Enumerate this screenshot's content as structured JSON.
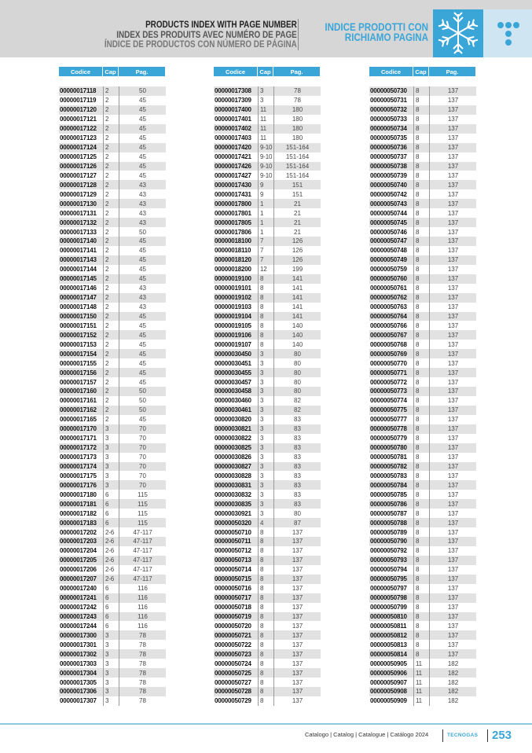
{
  "header": {
    "title_en": "PRODUCTS INDEX WITH PAGE NUMBER",
    "title_fr": "INDEX DES PRODUITS AVEC NUMÉRO DE PAGE",
    "title_es": "ÍNDICE DE PRODUCTOS CON NÚMERO DE PÁGINA",
    "title_it_line1": "INDICE PRODOTTI CON",
    "title_it_line2": "RICHIAMO PAGINA",
    "icon": "snowflake-icon",
    "accent_color": "#3aa6d8"
  },
  "columns": {
    "code": "Codice",
    "cap": "Cap",
    "pag": "Pag."
  },
  "tables": [
    [
      [
        "00000017118",
        "2",
        "50"
      ],
      [
        "00000017119",
        "2",
        "45"
      ],
      [
        "00000017120",
        "2",
        "45"
      ],
      [
        "00000017121",
        "2",
        "45"
      ],
      [
        "00000017122",
        "2",
        "45"
      ],
      [
        "00000017123",
        "2",
        "45"
      ],
      [
        "00000017124",
        "2",
        "45"
      ],
      [
        "00000017125",
        "2",
        "45"
      ],
      [
        "00000017126",
        "2",
        "45"
      ],
      [
        "00000017127",
        "2",
        "45"
      ],
      [
        "00000017128",
        "2",
        "43"
      ],
      [
        "00000017129",
        "2",
        "43"
      ],
      [
        "00000017130",
        "2",
        "43"
      ],
      [
        "00000017131",
        "2",
        "43"
      ],
      [
        "00000017132",
        "2",
        "43"
      ],
      [
        "00000017133",
        "2",
        "50"
      ],
      [
        "00000017140",
        "2",
        "45"
      ],
      [
        "00000017141",
        "2",
        "45"
      ],
      [
        "00000017143",
        "2",
        "45"
      ],
      [
        "00000017144",
        "2",
        "45"
      ],
      [
        "00000017145",
        "2",
        "45"
      ],
      [
        "00000017146",
        "2",
        "43"
      ],
      [
        "00000017147",
        "2",
        "43"
      ],
      [
        "00000017148",
        "2",
        "43"
      ],
      [
        "00000017150",
        "2",
        "45"
      ],
      [
        "00000017151",
        "2",
        "45"
      ],
      [
        "00000017152",
        "2",
        "45"
      ],
      [
        "00000017153",
        "2",
        "45"
      ],
      [
        "00000017154",
        "2",
        "45"
      ],
      [
        "00000017155",
        "2",
        "45"
      ],
      [
        "00000017156",
        "2",
        "45"
      ],
      [
        "00000017157",
        "2",
        "45"
      ],
      [
        "00000017160",
        "2",
        "50"
      ],
      [
        "00000017161",
        "2",
        "50"
      ],
      [
        "00000017162",
        "2",
        "50"
      ],
      [
        "00000017165",
        "2",
        "45"
      ],
      [
        "00000017170",
        "3",
        "70"
      ],
      [
        "00000017171",
        "3",
        "70"
      ],
      [
        "00000017172",
        "3",
        "70"
      ],
      [
        "00000017173",
        "3",
        "70"
      ],
      [
        "00000017174",
        "3",
        "70"
      ],
      [
        "00000017175",
        "3",
        "70"
      ],
      [
        "00000017176",
        "3",
        "70"
      ],
      [
        "00000017180",
        "6",
        "115"
      ],
      [
        "00000017181",
        "6",
        "115"
      ],
      [
        "00000017182",
        "6",
        "115"
      ],
      [
        "00000017183",
        "6",
        "115"
      ],
      [
        "00000017202",
        "2-6",
        "47-117"
      ],
      [
        "00000017203",
        "2-6",
        "47-117"
      ],
      [
        "00000017204",
        "2-6",
        "47-117"
      ],
      [
        "00000017205",
        "2-6",
        "47-117"
      ],
      [
        "00000017206",
        "2-6",
        "47-117"
      ],
      [
        "00000017207",
        "2-6",
        "47-117"
      ],
      [
        "00000017240",
        "6",
        "116"
      ],
      [
        "00000017241",
        "6",
        "116"
      ],
      [
        "00000017242",
        "6",
        "116"
      ],
      [
        "00000017243",
        "6",
        "116"
      ],
      [
        "00000017244",
        "6",
        "116"
      ],
      [
        "00000017300",
        "3",
        "78"
      ],
      [
        "00000017301",
        "3",
        "78"
      ],
      [
        "00000017302",
        "3",
        "78"
      ],
      [
        "00000017303",
        "3",
        "78"
      ],
      [
        "00000017304",
        "3",
        "78"
      ],
      [
        "00000017305",
        "3",
        "78"
      ],
      [
        "00000017306",
        "3",
        "78"
      ],
      [
        "00000017307",
        "3",
        "78"
      ]
    ],
    [
      [
        "00000017308",
        "3",
        "78"
      ],
      [
        "00000017309",
        "3",
        "78"
      ],
      [
        "00000017400",
        "11",
        "180"
      ],
      [
        "00000017401",
        "11",
        "180"
      ],
      [
        "00000017402",
        "11",
        "180"
      ],
      [
        "00000017403",
        "11",
        "180"
      ],
      [
        "00000017420",
        "9-10",
        "151-164"
      ],
      [
        "00000017421",
        "9-10",
        "151-164"
      ],
      [
        "00000017426",
        "9-10",
        "151-164"
      ],
      [
        "00000017427",
        "9-10",
        "151-164"
      ],
      [
        "00000017430",
        "9",
        "151"
      ],
      [
        "00000017431",
        "9",
        "151"
      ],
      [
        "00000017800",
        "1",
        "21"
      ],
      [
        "00000017801",
        "1",
        "21"
      ],
      [
        "00000017805",
        "1",
        "21"
      ],
      [
        "00000017806",
        "1",
        "21"
      ],
      [
        "00000018100",
        "7",
        "126"
      ],
      [
        "00000018110",
        "7",
        "126"
      ],
      [
        "00000018120",
        "7",
        "126"
      ],
      [
        "00000018200",
        "12",
        "199"
      ],
      [
        "00000019100",
        "8",
        "141"
      ],
      [
        "00000019101",
        "8",
        "141"
      ],
      [
        "00000019102",
        "8",
        "141"
      ],
      [
        "00000019103",
        "8",
        "141"
      ],
      [
        "00000019104",
        "8",
        "141"
      ],
      [
        "00000019105",
        "8",
        "140"
      ],
      [
        "00000019106",
        "8",
        "140"
      ],
      [
        "00000019107",
        "8",
        "140"
      ],
      [
        "00000030450",
        "3",
        "80"
      ],
      [
        "00000030451",
        "3",
        "80"
      ],
      [
        "00000030455",
        "3",
        "80"
      ],
      [
        "00000030457",
        "3",
        "80"
      ],
      [
        "00000030458",
        "3",
        "80"
      ],
      [
        "00000030460",
        "3",
        "82"
      ],
      [
        "00000030461",
        "3",
        "82"
      ],
      [
        "00000030820",
        "3",
        "83"
      ],
      [
        "00000030821",
        "3",
        "83"
      ],
      [
        "00000030822",
        "3",
        "83"
      ],
      [
        "00000030825",
        "3",
        "83"
      ],
      [
        "00000030826",
        "3",
        "83"
      ],
      [
        "00000030827",
        "3",
        "83"
      ],
      [
        "00000030828",
        "3",
        "83"
      ],
      [
        "00000030831",
        "3",
        "83"
      ],
      [
        "00000030832",
        "3",
        "83"
      ],
      [
        "00000030835",
        "3",
        "83"
      ],
      [
        "00000030921",
        "3",
        "80"
      ],
      [
        "00000050320",
        "4",
        "87"
      ],
      [
        "00000050710",
        "8",
        "137"
      ],
      [
        "00000050711",
        "8",
        "137"
      ],
      [
        "00000050712",
        "8",
        "137"
      ],
      [
        "00000050713",
        "8",
        "137"
      ],
      [
        "00000050714",
        "8",
        "137"
      ],
      [
        "00000050715",
        "8",
        "137"
      ],
      [
        "00000050716",
        "8",
        "137"
      ],
      [
        "00000050717",
        "8",
        "137"
      ],
      [
        "00000050718",
        "8",
        "137"
      ],
      [
        "00000050719",
        "8",
        "137"
      ],
      [
        "00000050720",
        "8",
        "137"
      ],
      [
        "00000050721",
        "8",
        "137"
      ],
      [
        "00000050722",
        "8",
        "137"
      ],
      [
        "00000050723",
        "8",
        "137"
      ],
      [
        "00000050724",
        "8",
        "137"
      ],
      [
        "00000050725",
        "8",
        "137"
      ],
      [
        "00000050727",
        "8",
        "137"
      ],
      [
        "00000050728",
        "8",
        "137"
      ],
      [
        "00000050729",
        "8",
        "137"
      ]
    ],
    [
      [
        "00000050730",
        "8",
        "137"
      ],
      [
        "00000050731",
        "8",
        "137"
      ],
      [
        "00000050732",
        "8",
        "137"
      ],
      [
        "00000050733",
        "8",
        "137"
      ],
      [
        "00000050734",
        "8",
        "137"
      ],
      [
        "00000050735",
        "8",
        "137"
      ],
      [
        "00000050736",
        "8",
        "137"
      ],
      [
        "00000050737",
        "8",
        "137"
      ],
      [
        "00000050738",
        "8",
        "137"
      ],
      [
        "00000050739",
        "8",
        "137"
      ],
      [
        "00000050740",
        "8",
        "137"
      ],
      [
        "00000050742",
        "8",
        "137"
      ],
      [
        "00000050743",
        "8",
        "137"
      ],
      [
        "00000050744",
        "8",
        "137"
      ],
      [
        "00000050745",
        "8",
        "137"
      ],
      [
        "00000050746",
        "8",
        "137"
      ],
      [
        "00000050747",
        "8",
        "137"
      ],
      [
        "00000050748",
        "8",
        "137"
      ],
      [
        "00000050749",
        "8",
        "137"
      ],
      [
        "00000050759",
        "8",
        "137"
      ],
      [
        "00000050760",
        "8",
        "137"
      ],
      [
        "00000050761",
        "8",
        "137"
      ],
      [
        "00000050762",
        "8",
        "137"
      ],
      [
        "00000050763",
        "8",
        "137"
      ],
      [
        "00000050764",
        "8",
        "137"
      ],
      [
        "00000050766",
        "8",
        "137"
      ],
      [
        "00000050767",
        "8",
        "137"
      ],
      [
        "00000050768",
        "8",
        "137"
      ],
      [
        "00000050769",
        "8",
        "137"
      ],
      [
        "00000050770",
        "8",
        "137"
      ],
      [
        "00000050771",
        "8",
        "137"
      ],
      [
        "00000050772",
        "8",
        "137"
      ],
      [
        "00000050773",
        "8",
        "137"
      ],
      [
        "00000050774",
        "8",
        "137"
      ],
      [
        "00000050775",
        "8",
        "137"
      ],
      [
        "00000050777",
        "8",
        "137"
      ],
      [
        "00000050778",
        "8",
        "137"
      ],
      [
        "00000050779",
        "8",
        "137"
      ],
      [
        "00000050780",
        "8",
        "137"
      ],
      [
        "00000050781",
        "8",
        "137"
      ],
      [
        "00000050782",
        "8",
        "137"
      ],
      [
        "00000050783",
        "8",
        "137"
      ],
      [
        "00000050784",
        "8",
        "137"
      ],
      [
        "00000050785",
        "8",
        "137"
      ],
      [
        "00000050786",
        "8",
        "137"
      ],
      [
        "00000050787",
        "8",
        "137"
      ],
      [
        "00000050788",
        "8",
        "137"
      ],
      [
        "00000050789",
        "8",
        "137"
      ],
      [
        "00000050790",
        "8",
        "137"
      ],
      [
        "00000050792",
        "8",
        "137"
      ],
      [
        "00000050793",
        "8",
        "137"
      ],
      [
        "00000050794",
        "8",
        "137"
      ],
      [
        "00000050795",
        "8",
        "137"
      ],
      [
        "00000050797",
        "8",
        "137"
      ],
      [
        "00000050798",
        "8",
        "137"
      ],
      [
        "00000050799",
        "8",
        "137"
      ],
      [
        "00000050810",
        "8",
        "137"
      ],
      [
        "00000050811",
        "8",
        "137"
      ],
      [
        "00000050812",
        "8",
        "137"
      ],
      [
        "00000050813",
        "8",
        "137"
      ],
      [
        "00000050814",
        "8",
        "137"
      ],
      [
        "00000050905",
        "11",
        "182"
      ],
      [
        "00000050906",
        "11",
        "182"
      ],
      [
        "00000050907",
        "11",
        "182"
      ],
      [
        "00000050908",
        "11",
        "182"
      ],
      [
        "00000050909",
        "11",
        "182"
      ]
    ]
  ],
  "footer": {
    "catalog_text": "Catalogo | Catalog | Catalogue | Catálogo 2024",
    "brand": "TECNOGAS",
    "page_number": "253"
  }
}
